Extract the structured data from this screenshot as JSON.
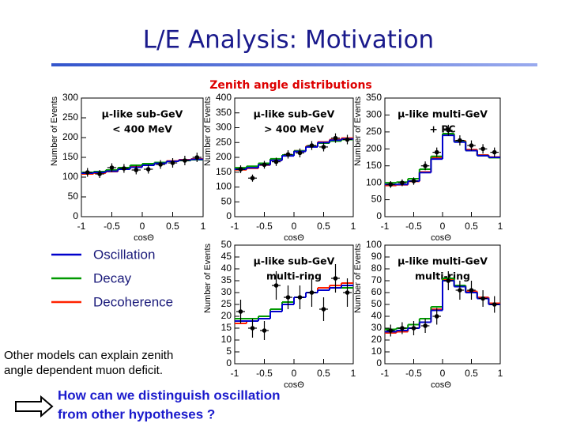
{
  "slide": {
    "title": "L/E Analysis: Motivation",
    "subtitle": "Zenith angle distributions",
    "legend": [
      {
        "name": "Oscillation",
        "color": "#0000cc"
      },
      {
        "name": "Decay",
        "color": "#009900"
      },
      {
        "name": "Decoherence",
        "color": "#ff2200"
      }
    ],
    "note": [
      "Other models can explain zenith",
      "angle dependent muon deficit."
    ],
    "question": [
      "How can we distinguish oscillation",
      "from other hypotheses ?"
    ]
  },
  "chart_data": [
    {
      "type": "histogram",
      "label": [
        "μ-like sub-GeV",
        "< 400 MeV"
      ],
      "xlabel": "cosΘ",
      "ylabel": "Number of Events",
      "bins": [
        -1,
        -0.8,
        -0.6,
        -0.4,
        -0.2,
        0,
        0.2,
        0.4,
        0.6,
        0.8,
        1
      ],
      "xlim": [
        -1,
        1
      ],
      "xticks": [
        -1,
        -0.5,
        0,
        0.5,
        1
      ],
      "ylim": [
        0,
        300
      ],
      "yticks": [
        0,
        50,
        100,
        150,
        200,
        250,
        300
      ],
      "series": [
        {
          "values": [
            110,
            112,
            115,
            120,
            125,
            130,
            135,
            140,
            143,
            145
          ]
        },
        {
          "values": [
            112,
            114,
            118,
            124,
            130,
            134,
            137,
            140,
            142,
            144
          ]
        },
        {
          "values": [
            108,
            110,
            114,
            120,
            126,
            132,
            137,
            141,
            144,
            146
          ]
        }
      ],
      "points": {
        "values": [
          112,
          108,
          124,
          122,
          118,
          120,
          132,
          136,
          142,
          150
        ],
        "errors": [
          11,
          10,
          11,
          11,
          11,
          11,
          11,
          12,
          12,
          12
        ]
      }
    },
    {
      "type": "histogram",
      "label": [
        "μ-like sub-GeV",
        "> 400 MeV"
      ],
      "xlabel": "cosΘ",
      "ylabel": "Number of Events",
      "bins": [
        -1,
        -0.8,
        -0.6,
        -0.4,
        -0.2,
        0,
        0.2,
        0.4,
        0.6,
        0.8,
        1
      ],
      "xlim": [
        -1,
        1
      ],
      "xticks": [
        -1,
        -0.5,
        0,
        0.5,
        1
      ],
      "ylim": [
        0,
        400
      ],
      "yticks": [
        0,
        50,
        100,
        150,
        200,
        250,
        300,
        350,
        400
      ],
      "series": [
        {
          "values": [
            160,
            165,
            175,
            190,
            205,
            220,
            235,
            250,
            258,
            262
          ]
        },
        {
          "values": [
            165,
            170,
            180,
            195,
            208,
            222,
            236,
            248,
            255,
            260
          ]
        },
        {
          "values": [
            158,
            163,
            174,
            190,
            206,
            222,
            238,
            252,
            260,
            265
          ]
        }
      ],
      "points": {
        "values": [
          160,
          130,
          175,
          185,
          210,
          215,
          240,
          235,
          265,
          260
        ],
        "errors": [
          13,
          12,
          13,
          14,
          14,
          15,
          15,
          15,
          16,
          16
        ]
      }
    },
    {
      "type": "histogram",
      "label": [
        "μ-like multi-GeV",
        "+ PC"
      ],
      "xlabel": "cosΘ",
      "ylabel": "Number of Events",
      "bins": [
        -1,
        -0.8,
        -0.6,
        -0.4,
        -0.2,
        0,
        0.2,
        0.4,
        0.6,
        0.8,
        1
      ],
      "xlim": [
        -1,
        1
      ],
      "xticks": [
        -1,
        -0.5,
        0,
        0.5,
        1
      ],
      "ylim": [
        0,
        350
      ],
      "yticks": [
        0,
        50,
        100,
        150,
        200,
        250,
        300,
        350
      ],
      "series": [
        {
          "values": [
            95,
            95,
            105,
            130,
            170,
            240,
            220,
            195,
            180,
            175
          ]
        },
        {
          "values": [
            100,
            102,
            112,
            140,
            178,
            245,
            222,
            195,
            180,
            174
          ]
        },
        {
          "values": [
            92,
            94,
            104,
            132,
            174,
            244,
            224,
            198,
            182,
            176
          ]
        }
      ],
      "points": {
        "values": [
          95,
          100,
          105,
          150,
          190,
          255,
          225,
          210,
          200,
          190
        ],
        "errors": [
          10,
          10,
          11,
          13,
          14,
          16,
          15,
          15,
          14,
          14
        ]
      }
    },
    {
      "type": "histogram",
      "label": [
        "μ-like sub-GeV",
        "multi-ring"
      ],
      "xlabel": "cosΘ",
      "ylabel": "Number of Events",
      "bins": [
        -1,
        -0.8,
        -0.6,
        -0.4,
        -0.2,
        0,
        0.2,
        0.4,
        0.6,
        0.8,
        1
      ],
      "xlim": [
        -1,
        1
      ],
      "xticks": [
        -1,
        -0.5,
        0,
        0.5,
        1
      ],
      "ylim": [
        0,
        50
      ],
      "yticks": [
        0,
        5,
        10,
        15,
        20,
        25,
        30,
        35,
        40,
        45,
        50
      ],
      "series": [
        {
          "values": [
            18,
            18,
            19,
            22,
            25,
            28,
            30,
            31,
            32,
            33
          ]
        },
        {
          "values": [
            19,
            19,
            20,
            23,
            26,
            28,
            30,
            31,
            32,
            32
          ]
        },
        {
          "values": [
            17,
            18,
            19,
            22,
            25,
            28,
            30,
            32,
            33,
            34
          ]
        }
      ],
      "points": {
        "values": [
          22,
          15,
          14,
          33,
          28,
          28,
          30,
          23,
          36,
          30
        ],
        "errors": [
          5,
          4,
          4,
          6,
          5,
          5,
          6,
          5,
          6,
          6
        ]
      }
    },
    {
      "type": "histogram",
      "label": [
        "μ-like multi-GeV",
        "multi-ring"
      ],
      "xlabel": "cosΘ",
      "ylabel": "Number of Events",
      "bins": [
        -1,
        -0.8,
        -0.6,
        -0.4,
        -0.2,
        0,
        0.2,
        0.4,
        0.6,
        0.8,
        1
      ],
      "xlim": [
        -1,
        1
      ],
      "xticks": [
        -1,
        -0.5,
        0,
        0.5,
        1
      ],
      "ylim": [
        0,
        100
      ],
      "yticks": [
        0,
        10,
        20,
        30,
        40,
        50,
        60,
        70,
        80,
        90,
        100
      ],
      "series": [
        {
          "values": [
            27,
            28,
            30,
            35,
            45,
            70,
            65,
            60,
            55,
            50
          ]
        },
        {
          "values": [
            29,
            30,
            33,
            38,
            48,
            72,
            66,
            60,
            55,
            50
          ]
        },
        {
          "values": [
            26,
            27,
            30,
            35,
            46,
            71,
            66,
            61,
            56,
            51
          ]
        }
      ],
      "points": {
        "values": [
          28,
          30,
          30,
          32,
          40,
          70,
          62,
          62,
          55,
          50
        ],
        "errors": [
          5,
          5,
          6,
          6,
          7,
          8,
          8,
          8,
          7,
          7
        ]
      }
    }
  ]
}
